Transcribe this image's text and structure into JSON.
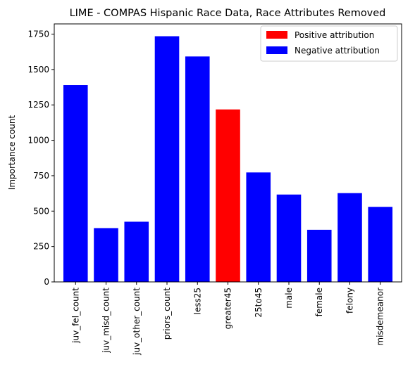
{
  "chart_data": {
    "type": "bar",
    "title": "LIME - COMPAS Hispanic Race Data, Race Attributes Removed",
    "xlabel": "",
    "ylabel": "Importance count",
    "categories": [
      "juv_fel_count",
      "juv_misd_count",
      "juv_other_count",
      "priors_count",
      "less25",
      "greater45",
      "25to45",
      "male",
      "female",
      "felony",
      "misdemeanor"
    ],
    "values": [
      1390,
      380,
      425,
      1735,
      1592,
      1218,
      773,
      617,
      368,
      627,
      530
    ],
    "attribution": [
      "negative",
      "negative",
      "negative",
      "negative",
      "negative",
      "positive",
      "negative",
      "negative",
      "negative",
      "negative",
      "negative"
    ],
    "ylim": [
      0,
      1822
    ],
    "yticks": [
      0,
      250,
      500,
      750,
      1000,
      1250,
      1500,
      1750
    ],
    "grid": false,
    "legend": {
      "position": "top-right",
      "entries": [
        {
          "label": "Positive attribution",
          "color": "#ff0000"
        },
        {
          "label": "Negative attribution",
          "color": "#0000ff"
        }
      ]
    },
    "colors": {
      "positive": "#ff0000",
      "negative": "#0000ff"
    }
  }
}
